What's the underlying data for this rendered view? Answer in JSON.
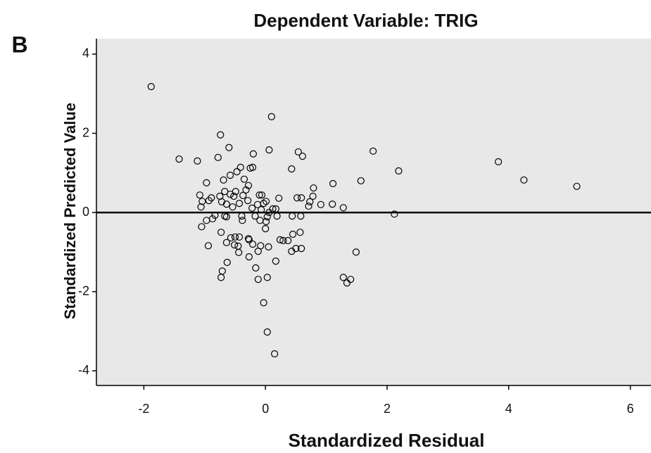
{
  "chart_data": {
    "type": "scatter",
    "panel_label": "B",
    "title": "Dependent Variable: TRIG",
    "x_label": "Standardized Residual",
    "y_label": "Standardized Predicted Value",
    "color": "#000000",
    "background": "#e8e8e8",
    "reference_line": 0,
    "xlim": [
      -2.78,
      6.34
    ],
    "ylim": [
      -4.37,
      4.39
    ],
    "xticks": [
      -2,
      0,
      2,
      4,
      6
    ],
    "yticks": [
      -4,
      -2,
      0,
      2,
      4
    ],
    "x": [
      -1.88,
      0.1,
      -1.42,
      -1.12,
      -0.74,
      -0.6,
      -0.78,
      -0.2,
      0.06,
      0.54,
      0.61,
      1.77,
      2.19,
      3.83,
      4.25,
      5.12,
      0.43,
      -0.25,
      -0.21,
      -0.41,
      -0.47,
      -0.58,
      -0.97,
      -0.69,
      -0.35,
      1.57,
      1.11,
      0.79,
      -0.28,
      -0.32,
      -0.67,
      -1.08,
      -0.58,
      -0.49,
      -0.89,
      -0.75,
      -0.52,
      -0.37,
      -0.1,
      -0.06,
      0.22,
      0.52,
      0.59,
      0.78,
      -1.04,
      -0.93,
      -0.72,
      -0.64,
      -0.43,
      -0.29,
      -0.13,
      -0.03,
      0.01,
      0.73,
      0.71,
      0.91,
      1.1,
      1.28,
      -1.06,
      -0.54,
      -0.22,
      -0.07,
      0.12,
      0.17,
      0.06,
      2.12,
      -0.83,
      -0.67,
      -0.39,
      -0.17,
      0.03,
      0.19,
      0.44,
      0.58,
      -0.97,
      -0.87,
      -0.64,
      -0.38,
      -0.09,
      0.01,
      -1.05,
      0.0,
      -0.73,
      0.57,
      0.45,
      -0.5,
      -0.43,
      -0.57,
      -0.28,
      -0.27,
      0.24,
      0.29,
      0.37,
      -0.64,
      -0.21,
      -0.94,
      -0.51,
      -0.45,
      -0.08,
      0.05,
      0.5,
      0.59,
      0.43,
      -0.12,
      -0.44,
      1.49,
      -0.27,
      -0.63,
      0.17,
      -0.16,
      -0.71,
      -0.73,
      0.03,
      -0.12,
      1.28,
      1.4,
      1.34,
      -0.03,
      0.03,
      0.15
    ],
    "values": [
      3.18,
      2.42,
      1.35,
      1.3,
      1.96,
      1.64,
      1.39,
      1.48,
      1.58,
      1.53,
      1.42,
      1.55,
      1.05,
      1.28,
      0.82,
      0.66,
      1.1,
      1.12,
      1.14,
      1.14,
      1.03,
      0.94,
      0.75,
      0.82,
      0.84,
      0.8,
      0.73,
      0.62,
      0.68,
      0.57,
      0.53,
      0.44,
      0.46,
      0.53,
      0.37,
      0.41,
      0.41,
      0.43,
      0.44,
      0.44,
      0.36,
      0.37,
      0.37,
      0.41,
      0.28,
      0.3,
      0.27,
      0.21,
      0.23,
      0.3,
      0.2,
      0.23,
      0.28,
      0.27,
      0.16,
      0.2,
      0.21,
      0.12,
      0.14,
      0.14,
      0.11,
      0.07,
      0.09,
      0.09,
      0.0,
      -0.04,
      -0.07,
      -0.09,
      -0.09,
      -0.09,
      -0.11,
      -0.09,
      -0.09,
      -0.09,
      -0.2,
      -0.16,
      -0.11,
      -0.2,
      -0.2,
      -0.23,
      -0.36,
      -0.41,
      -0.5,
      -0.5,
      -0.55,
      -0.62,
      -0.62,
      -0.64,
      -0.66,
      -0.69,
      -0.69,
      -0.71,
      -0.71,
      -0.76,
      -0.8,
      -0.84,
      -0.82,
      -0.85,
      -0.84,
      -0.87,
      -0.91,
      -0.91,
      -0.98,
      -0.98,
      -1.01,
      -1.0,
      -1.12,
      -1.26,
      -1.23,
      -1.4,
      -1.48,
      -1.64,
      -1.64,
      -1.69,
      -1.64,
      -1.69,
      -1.78,
      -2.28,
      -3.02,
      -3.57
    ]
  }
}
